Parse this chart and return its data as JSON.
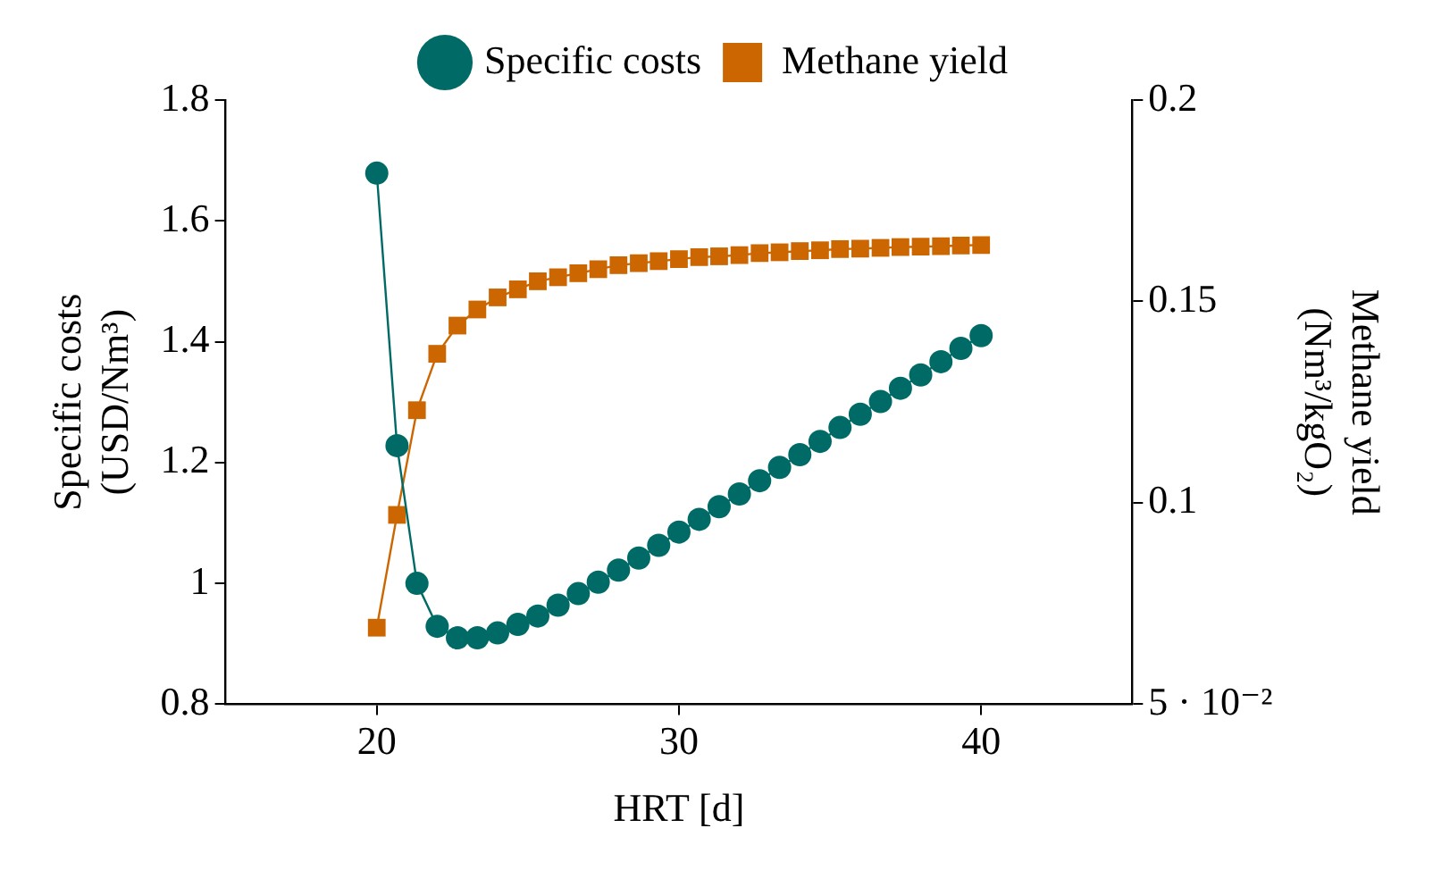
{
  "chart_data": {
    "type": "line",
    "xlabel": "HRT [d]",
    "ylabel": "Specific costs\n(USD/Nm³)",
    "y2label": "Methane yield\n(Nm³/kgO₂)",
    "xlim": [
      15,
      45
    ],
    "xticks": [
      20,
      30,
      40
    ],
    "ylim": [
      0.8,
      1.8
    ],
    "yticks": [
      0.8,
      1,
      1.2,
      1.4,
      1.6,
      1.8
    ],
    "y2lim": [
      0.05,
      0.2
    ],
    "y2ticks": [
      {
        "value": 0.05,
        "label": "5 · 10⁻²"
      },
      0.1,
      0.15,
      0.2
    ],
    "grid": false,
    "legend": "top",
    "line_style": "solid",
    "x": [
      20,
      20.67,
      21.33,
      22,
      22.67,
      23.33,
      24,
      24.67,
      25.33,
      26,
      26.67,
      27.33,
      28,
      28.67,
      29.33,
      30,
      30.67,
      31.33,
      32,
      32.67,
      33.33,
      34,
      34.67,
      35.33,
      36,
      36.67,
      37.33,
      38,
      38.67,
      39.33,
      40
    ],
    "series": [
      {
        "name": "Specific costs",
        "color": "#006b66",
        "marker": "circle",
        "values": [
          1.679,
          1.228,
          1.0,
          0.929,
          0.91,
          0.91,
          0.918,
          0.932,
          0.946,
          0.964,
          0.983,
          1.002,
          1.022,
          1.042,
          1.063,
          1.085,
          1.106,
          1.127,
          1.148,
          1.17,
          1.192,
          1.213,
          1.235,
          1.258,
          1.28,
          1.301,
          1.323,
          1.345,
          1.367,
          1.389,
          1.41
        ]
      },
      {
        "name": "Methane yield",
        "color": "#cc6600",
        "marker": "square",
        "axis": "y2",
        "values": [
          0.069,
          0.097,
          0.123,
          0.137,
          0.144,
          0.148,
          0.151,
          0.153,
          0.155,
          0.156,
          0.157,
          0.158,
          0.159,
          0.1595,
          0.16,
          0.1605,
          0.161,
          0.1612,
          0.1615,
          0.162,
          0.1622,
          0.1625,
          0.1627,
          0.163,
          0.1631,
          0.1633,
          0.1635,
          0.1636,
          0.1637,
          0.1639,
          0.164
        ]
      }
    ]
  }
}
